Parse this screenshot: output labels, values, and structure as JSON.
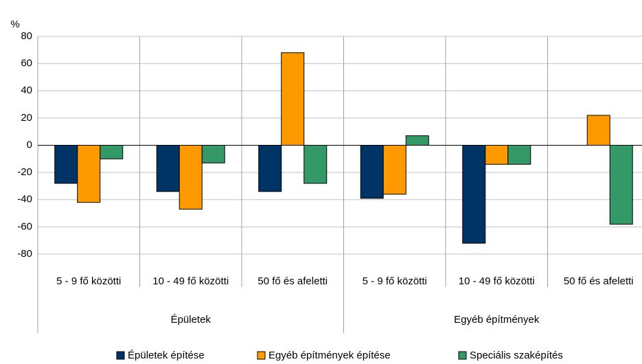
{
  "chart_data": {
    "type": "bar",
    "y_label": "%",
    "categories": [
      "5 - 9 fő közötti",
      "10 - 49 fő közötti",
      "50 fő és afeletti",
      "5 - 9 fő közötti",
      "10 - 49 fő közötti",
      "50 fő és afeletti"
    ],
    "category_groups": [
      "Épületek",
      "Egyéb építmények"
    ],
    "series": [
      {
        "name": "Épületek építése",
        "color": "#003366",
        "values": [
          -28,
          -34,
          -34,
          -39,
          -72,
          null
        ]
      },
      {
        "name": "Egyéb építmények építése",
        "color": "#ff9900",
        "values": [
          -42,
          -47,
          68,
          -36,
          -14,
          22
        ]
      },
      {
        "name": "Speciális szaképítés",
        "color": "#339966",
        "values": [
          -10,
          -13,
          -28,
          7,
          -14,
          -58
        ]
      }
    ],
    "ylim": [
      -80,
      80
    ],
    "yticks": [
      -80,
      -60,
      -40,
      -20,
      0,
      20,
      40,
      60,
      80
    ],
    "grid": true,
    "legend": "bottom"
  }
}
